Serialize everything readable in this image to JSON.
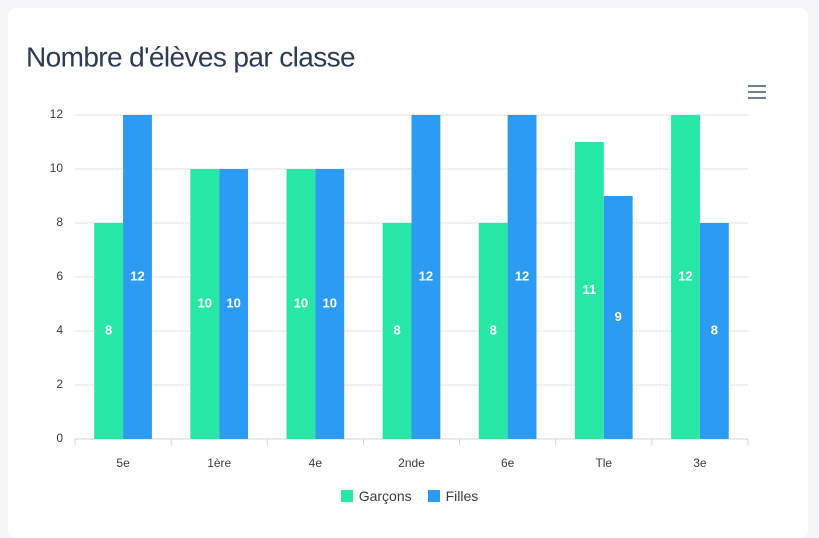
{
  "chart_data": {
    "type": "bar",
    "title": "Nombre d'élèves par classe",
    "categories": [
      "5e",
      "1ère",
      "4e",
      "2nde",
      "6e",
      "Tle",
      "3e"
    ],
    "series": [
      {
        "name": "Garçons",
        "color": "#26e7a6",
        "values": [
          8,
          10,
          10,
          8,
          8,
          11,
          12
        ]
      },
      {
        "name": "Filles",
        "color": "#2b9bf4",
        "values": [
          12,
          10,
          10,
          12,
          12,
          9,
          8
        ]
      }
    ],
    "ylim": [
      0,
      12
    ],
    "yticks": [
      0,
      2,
      4,
      6,
      8,
      10,
      12
    ],
    "grid": true,
    "data_labels": true,
    "legend": "bottom"
  }
}
